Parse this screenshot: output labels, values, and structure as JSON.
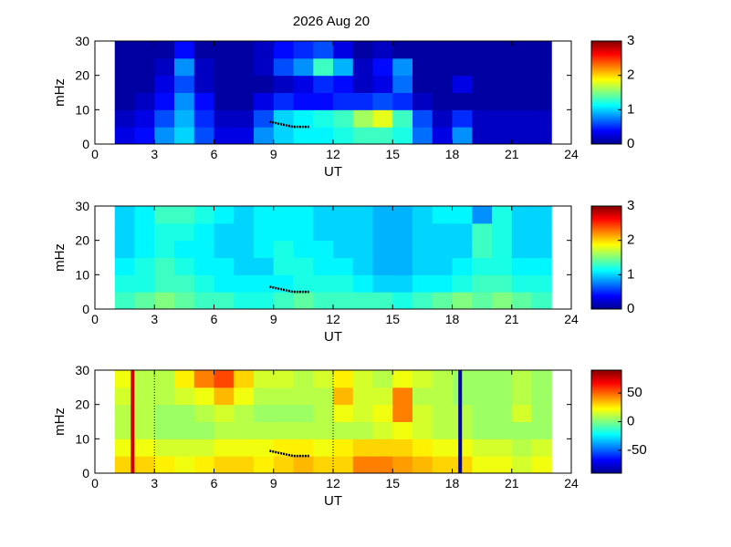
{
  "chart_data": [
    {
      "type": "heatmap",
      "title": "2026 Aug 20",
      "xlabel": "UT",
      "ylabel": "mHz",
      "colormap": "jet",
      "xlim": [
        0,
        24
      ],
      "xticks": [
        0,
        3,
        6,
        9,
        12,
        15,
        18,
        21,
        24
      ],
      "ylim": [
        0,
        30
      ],
      "yticks": [
        0,
        10,
        20,
        30
      ],
      "zlim": [
        0,
        3
      ],
      "zticks": [
        0,
        1,
        2,
        3
      ],
      "xbins": [
        1,
        2,
        3,
        4,
        5,
        6,
        7,
        8,
        9,
        10,
        11,
        12,
        13,
        14,
        15,
        16,
        17,
        18,
        19,
        20,
        21,
        22,
        23
      ],
      "ybins": [
        0,
        5,
        10,
        15,
        20,
        25,
        30
      ],
      "z": [
        [
          0.3,
          0.4,
          0.8,
          1.0,
          0.6,
          0.3,
          0.3,
          0.8,
          1.0,
          1.1,
          1.1,
          1.2,
          1.3,
          1.3,
          1.2,
          0.7,
          0.3,
          0.8,
          0.2,
          0.2,
          0.2,
          0.2
        ],
        [
          0.2,
          0.3,
          0.6,
          0.9,
          0.5,
          0.2,
          0.2,
          0.6,
          1.0,
          1.1,
          1.2,
          1.3,
          1.6,
          1.8,
          1.3,
          0.6,
          0.2,
          0.5,
          0.2,
          0.2,
          0.2,
          0.2
        ],
        [
          0.1,
          0.2,
          0.4,
          0.8,
          0.4,
          0.1,
          0.1,
          0.3,
          0.5,
          0.4,
          0.4,
          0.5,
          0.5,
          0.6,
          0.5,
          0.2,
          0.1,
          0.1,
          0.1,
          0.1,
          0.1,
          0.1
        ],
        [
          0.1,
          0.1,
          0.3,
          0.6,
          0.2,
          0.1,
          0.1,
          0.1,
          0.2,
          0.3,
          0.5,
          0.4,
          0.2,
          0.3,
          0.7,
          0.1,
          0.1,
          0.3,
          0.1,
          0.1,
          0.1,
          0.1
        ],
        [
          0.1,
          0.1,
          0.2,
          0.8,
          0.2,
          0.1,
          0.1,
          0.2,
          0.6,
          0.8,
          1.3,
          0.9,
          0.2,
          0.4,
          0.8,
          0.1,
          0.1,
          0.1,
          0.1,
          0.1,
          0.1,
          0.1
        ],
        [
          0.1,
          0.1,
          0.1,
          0.4,
          0.1,
          0.1,
          0.1,
          0.2,
          0.4,
          0.5,
          0.6,
          0.3,
          0.1,
          0.2,
          0.1,
          0.1,
          0.1,
          0.1,
          0.1,
          0.1,
          0.1,
          0.1
        ]
      ],
      "trace": {
        "x": [
          8.8,
          9.2,
          9.6,
          10.0,
          10.4,
          10.8
        ],
        "values": [
          6.5,
          6,
          5.5,
          5,
          5,
          5
        ],
        "color": "#000000"
      }
    },
    {
      "type": "heatmap",
      "xlabel": "UT",
      "ylabel": "mHz",
      "colormap": "jet",
      "xlim": [
        0,
        24
      ],
      "xticks": [
        0,
        3,
        6,
        9,
        12,
        15,
        18,
        21,
        24
      ],
      "ylim": [
        0,
        30
      ],
      "yticks": [
        0,
        10,
        20,
        30
      ],
      "zlim": [
        0,
        3
      ],
      "zticks": [
        0,
        1,
        2,
        3
      ],
      "xbins": [
        1,
        2,
        3,
        4,
        5,
        6,
        7,
        8,
        9,
        10,
        11,
        12,
        13,
        14,
        15,
        16,
        17,
        18,
        19,
        20,
        21,
        22,
        23
      ],
      "ybins": [
        0,
        5,
        10,
        15,
        20,
        25,
        30
      ],
      "z": [
        [
          1.3,
          1.4,
          1.5,
          1.4,
          1.3,
          1.3,
          1.2,
          1.2,
          1.3,
          1.4,
          1.3,
          1.3,
          1.3,
          1.3,
          1.2,
          1.3,
          1.4,
          1.5,
          1.4,
          1.5,
          1.4,
          1.3
        ],
        [
          1.2,
          1.2,
          1.3,
          1.3,
          1.2,
          1.1,
          1.1,
          1.1,
          1.1,
          1.2,
          1.2,
          1.2,
          1.1,
          1.0,
          1.0,
          1.1,
          1.1,
          1.2,
          1.3,
          1.3,
          1.2,
          1.2
        ],
        [
          1.1,
          1.2,
          1.3,
          1.2,
          1.1,
          1.1,
          1.0,
          1.0,
          1.2,
          1.2,
          1.1,
          1.1,
          1.0,
          0.9,
          0.9,
          1.0,
          1.0,
          1.1,
          1.2,
          1.2,
          1.1,
          1.1
        ],
        [
          1.0,
          1.1,
          1.2,
          1.1,
          1.1,
          1.0,
          1.0,
          1.1,
          1.2,
          1.1,
          1.1,
          1.0,
          1.0,
          0.9,
          0.9,
          1.0,
          1.0,
          1.0,
          1.3,
          1.2,
          1.0,
          1.0
        ],
        [
          1.0,
          1.1,
          1.2,
          1.2,
          1.1,
          1.0,
          1.0,
          1.1,
          1.1,
          1.1,
          1.0,
          1.0,
          1.0,
          0.9,
          0.9,
          1.0,
          1.0,
          1.0,
          1.3,
          1.2,
          1.0,
          1.0
        ],
        [
          1.0,
          1.1,
          1.3,
          1.3,
          1.2,
          1.1,
          1.0,
          1.1,
          1.1,
          1.1,
          1.0,
          1.0,
          1.0,
          0.9,
          0.9,
          1.0,
          1.1,
          1.1,
          0.8,
          1.2,
          1.0,
          1.0
        ]
      ],
      "trace": {
        "x": [
          8.8,
          9.2,
          9.6,
          10.0,
          10.4,
          10.8
        ],
        "values": [
          6.5,
          6,
          5.5,
          5,
          5,
          5
        ],
        "color": "#000000"
      }
    },
    {
      "type": "heatmap",
      "xlabel": "UT",
      "ylabel": "mHz",
      "colormap": "jet",
      "xlim": [
        0,
        24
      ],
      "xticks": [
        0,
        3,
        6,
        9,
        12,
        15,
        18,
        21,
        24
      ],
      "ylim": [
        0,
        30
      ],
      "yticks": [
        0,
        10,
        20,
        30
      ],
      "zlim": [
        -90,
        90
      ],
      "zticks": [
        -50,
        0,
        50
      ],
      "xbins": [
        1,
        2,
        3,
        4,
        5,
        6,
        7,
        8,
        9,
        10,
        11,
        12,
        13,
        14,
        15,
        16,
        17,
        18,
        19,
        20,
        21,
        22,
        23
      ],
      "ybins": [
        0,
        5,
        10,
        15,
        20,
        25,
        30
      ],
      "z": [
        [
          30,
          30,
          25,
          20,
          25,
          30,
          30,
          25,
          30,
          35,
          30,
          30,
          45,
          45,
          40,
          35,
          30,
          30,
          20,
          20,
          15,
          20
        ],
        [
          20,
          20,
          15,
          15,
          15,
          20,
          20,
          20,
          25,
          25,
          20,
          25,
          30,
          30,
          30,
          25,
          20,
          20,
          15,
          15,
          10,
          15
        ],
        [
          10,
          10,
          5,
          5,
          5,
          10,
          10,
          10,
          10,
          10,
          10,
          10,
          10,
          15,
          20,
          15,
          10,
          10,
          5,
          5,
          5,
          5
        ],
        [
          10,
          10,
          5,
          5,
          10,
          15,
          10,
          5,
          5,
          5,
          10,
          20,
          15,
          20,
          45,
          15,
          10,
          10,
          5,
          5,
          15,
          5
        ],
        [
          15,
          10,
          10,
          15,
          20,
          35,
          20,
          10,
          10,
          10,
          10,
          35,
          15,
          15,
          45,
          10,
          10,
          5,
          5,
          5,
          10,
          5
        ],
        [
          20,
          10,
          10,
          25,
          45,
          55,
          30,
          15,
          15,
          10,
          15,
          25,
          15,
          10,
          20,
          15,
          10,
          5,
          5,
          5,
          10,
          5
        ]
      ],
      "trace": {
        "x": [
          8.8,
          9.2,
          9.6,
          10.0,
          10.4,
          10.8
        ],
        "values": [
          6.5,
          6,
          5.5,
          5,
          5,
          5
        ],
        "color": "#000000"
      },
      "vlines": [
        {
          "x": 1.9,
          "color": "#d00000"
        },
        {
          "x": 18.4,
          "color": "#0000b0"
        }
      ],
      "dotted_lines": [
        3,
        12
      ]
    }
  ]
}
